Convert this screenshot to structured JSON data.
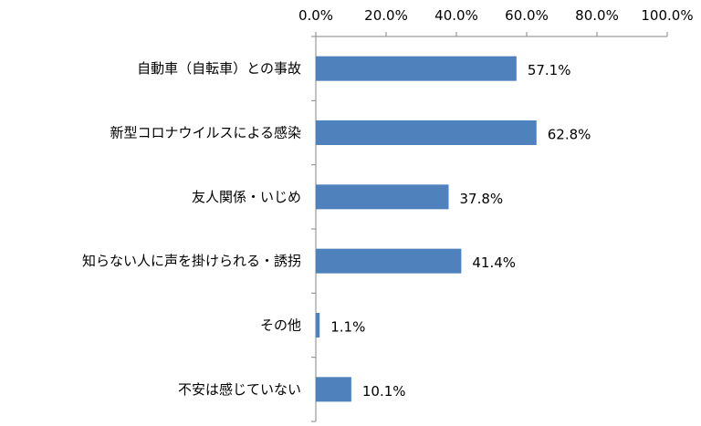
{
  "chart_data": {
    "type": "bar",
    "orientation": "horizontal",
    "categories": [
      "自動車（自転車）との事故",
      "新型コロナウイルスによる感染",
      "友人関係・いじめ",
      "知らない人に声を掛けられる・誘拐",
      "その他",
      "不安は感じていない"
    ],
    "values": [
      57.1,
      62.8,
      37.8,
      41.4,
      1.1,
      10.1
    ],
    "data_labels": [
      "57.1%",
      "62.8%",
      "37.8%",
      "41.4%",
      "1.1%",
      "10.1%"
    ],
    "x_ticks": [
      "0.0%",
      "20.0%",
      "40.0%",
      "60.0%",
      "80.0%",
      "100.0%"
    ],
    "xlim": [
      0,
      100
    ],
    "x_axis_position": "top",
    "grid": false,
    "bar_color": "#4f81bd"
  }
}
